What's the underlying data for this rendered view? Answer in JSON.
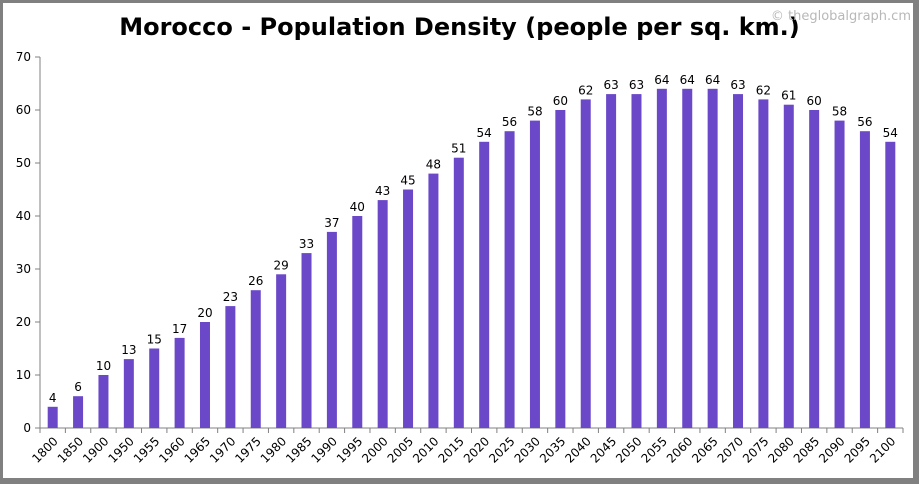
{
  "chart_data": {
    "type": "bar",
    "title": "Morocco - Population Density (people per sq. km.)",
    "watermark": "© theglobalgraph.cm",
    "categories": [
      "1800",
      "1850",
      "1900",
      "1950",
      "1955",
      "1960",
      "1965",
      "1970",
      "1975",
      "1980",
      "1985",
      "1990",
      "1995",
      "2000",
      "2005",
      "2010",
      "2015",
      "2020",
      "2025",
      "2030",
      "2035",
      "2040",
      "2045",
      "2050",
      "2055",
      "2060",
      "2065",
      "2070",
      "2075",
      "2080",
      "2085",
      "2090",
      "2095",
      "2100"
    ],
    "values": [
      4,
      6,
      10,
      13,
      15,
      17,
      20,
      23,
      26,
      29,
      33,
      37,
      40,
      43,
      45,
      48,
      51,
      54,
      56,
      58,
      60,
      62,
      63,
      63,
      64,
      64,
      64,
      63,
      62,
      61,
      60,
      58,
      56,
      54
    ],
    "ylim": [
      0,
      70
    ],
    "yticks": [
      0,
      10,
      20,
      30,
      40,
      50,
      60,
      70
    ],
    "xlabel": "",
    "ylabel": "",
    "grid": false,
    "bar_color": "#6a48c8",
    "data_labels": true
  }
}
